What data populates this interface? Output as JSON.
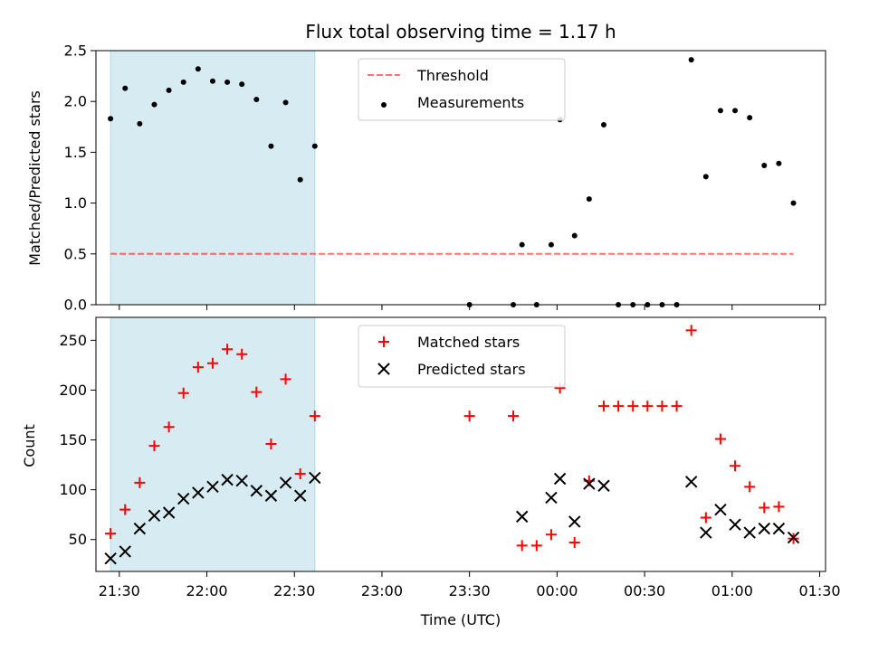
{
  "chart_data": [
    {
      "type": "scatter",
      "title": "Flux total observing time = 1.17 h",
      "xlabel": "",
      "ylabel": "Matched/Predicted stars",
      "ylim": [
        0,
        2.5
      ],
      "yticks": [
        "0.0",
        "0.5",
        "1.0",
        "1.5",
        "2.0",
        "2.5"
      ],
      "xlim": [
        "21:22",
        "01:32"
      ],
      "highlight_span": {
        "from": "21:27",
        "to": "22:37",
        "color": "#add8e6"
      },
      "legend": {
        "placement": "top-center",
        "entries": [
          "Threshold",
          "Measurements"
        ]
      },
      "series": [
        {
          "name": "Threshold",
          "kind": "dashed-line",
          "color": "#ff0000",
          "x": [
            "21:27",
            "01:21"
          ],
          "values": [
            0.5,
            0.5
          ]
        },
        {
          "name": "Measurements",
          "kind": "points",
          "color": "#000000",
          "x": [
            "21:27",
            "21:32",
            "21:37",
            "21:42",
            "21:47",
            "21:52",
            "21:57",
            "22:02",
            "22:07",
            "22:12",
            "22:17",
            "22:22",
            "22:27",
            "22:32",
            "22:37",
            "23:30",
            "23:45",
            "23:48",
            "23:53",
            "23:58",
            "00:01",
            "00:06",
            "00:11",
            "00:16",
            "00:21",
            "00:26",
            "00:31",
            "00:36",
            "00:41",
            "00:46",
            "00:51",
            "00:56",
            "01:01",
            "01:06",
            "01:11",
            "01:16",
            "01:21"
          ],
          "values": [
            1.83,
            2.13,
            1.78,
            1.97,
            2.11,
            2.19,
            2.32,
            2.2,
            2.19,
            2.17,
            2.02,
            1.56,
            1.99,
            1.23,
            1.56,
            0.0,
            0.0,
            0.59,
            0.0,
            0.59,
            1.82,
            0.68,
            1.04,
            1.77,
            0.0,
            0.0,
            0.0,
            0.0,
            0.0,
            2.41,
            1.26,
            1.91,
            1.91,
            1.84,
            1.37,
            1.39,
            1.0
          ]
        }
      ]
    },
    {
      "type": "scatter",
      "title": "",
      "xlabel": "Time (UTC)",
      "ylabel": "Count",
      "ylim": [
        18,
        273
      ],
      "yticks": [
        "50",
        "100",
        "150",
        "200",
        "250"
      ],
      "xlim": [
        "21:22",
        "01:32"
      ],
      "xticks": [
        "21:30",
        "22:00",
        "22:30",
        "23:00",
        "23:30",
        "00:00",
        "00:30",
        "01:00",
        "01:30"
      ],
      "highlight_span": {
        "from": "21:27",
        "to": "22:37",
        "color": "#add8e6"
      },
      "legend": {
        "placement": "top-center",
        "entries": [
          "Matched stars",
          "Predicted stars"
        ]
      },
      "series": [
        {
          "name": "Matched stars",
          "kind": "plus",
          "color": "#ff0000",
          "x": [
            "21:27",
            "21:32",
            "21:37",
            "21:42",
            "21:47",
            "21:52",
            "21:57",
            "22:02",
            "22:07",
            "22:12",
            "22:17",
            "22:22",
            "22:27",
            "22:32",
            "22:37",
            "23:30",
            "23:45",
            "23:48",
            "23:53",
            "23:58",
            "00:01",
            "00:06",
            "00:11",
            "00:16",
            "00:21",
            "00:26",
            "00:31",
            "00:36",
            "00:41",
            "00:46",
            "00:51",
            "00:56",
            "01:01",
            "01:06",
            "01:11",
            "01:16",
            "01:21"
          ],
          "values": [
            56,
            80,
            107,
            144,
            163,
            197,
            223,
            227,
            241,
            236,
            198,
            146,
            211,
            116,
            174,
            174,
            174,
            44,
            44,
            55,
            202,
            47,
            109,
            184,
            184,
            184,
            184,
            184,
            184,
            260,
            72,
            151,
            124,
            103,
            82,
            83,
            51
          ]
        },
        {
          "name": "Predicted stars",
          "kind": "x",
          "color": "#000000",
          "x": [
            "21:27",
            "21:32",
            "21:37",
            "21:42",
            "21:47",
            "21:52",
            "21:57",
            "22:02",
            "22:07",
            "22:12",
            "22:17",
            "22:22",
            "22:27",
            "22:32",
            "22:37",
            "23:48",
            "23:58",
            "00:01",
            "00:06",
            "00:11",
            "00:16",
            "00:46",
            "00:51",
            "00:56",
            "01:01",
            "01:06",
            "01:11",
            "01:16",
            "01:21"
          ],
          "values": [
            31,
            38,
            61,
            74,
            77,
            91,
            97,
            103,
            110,
            109,
            99,
            94,
            107,
            94,
            112,
            73,
            92,
            111,
            68,
            106,
            104,
            108,
            57,
            80,
            65,
            57,
            61,
            61,
            52
          ]
        }
      ]
    }
  ]
}
